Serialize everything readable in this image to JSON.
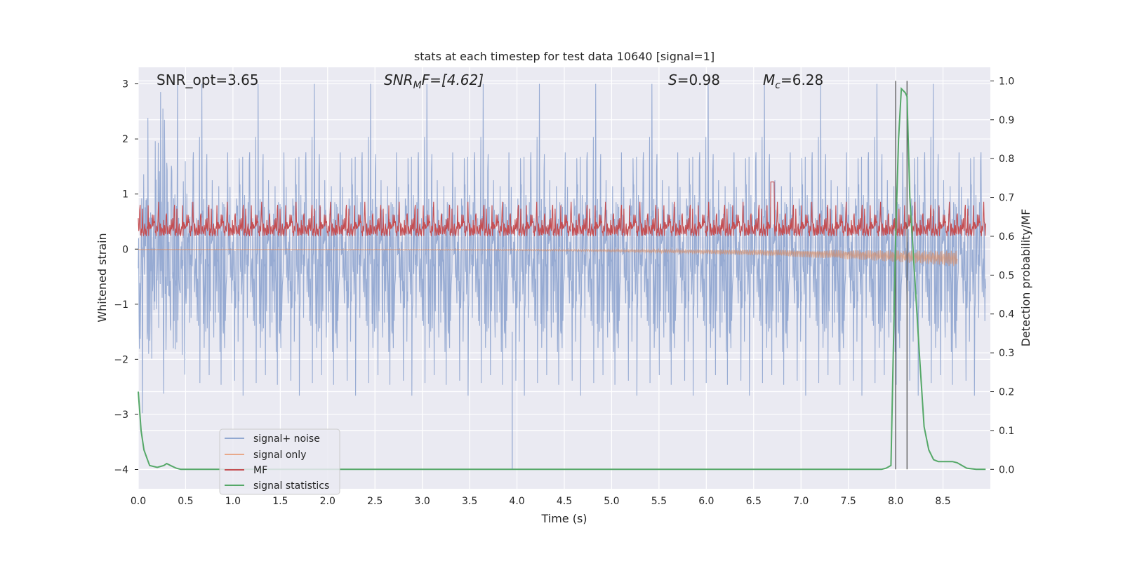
{
  "chart_data": {
    "type": "line",
    "title": "stats at each timestep for test data 10640 [signal=1]",
    "xlabel": "Time (s)",
    "ylabel_left": "Whitened strain",
    "ylabel_right": "Detection probability/MF",
    "xlim": [
      0.0,
      9.0
    ],
    "ylim_left": [
      -4.35,
      3.3
    ],
    "ylim_right": [
      -0.05,
      1.035
    ],
    "x_ticks": [
      "0.0",
      "0.5",
      "1.0",
      "1.5",
      "2.0",
      "2.5",
      "3.0",
      "3.5",
      "4.0",
      "4.5",
      "5.0",
      "5.5",
      "6.0",
      "6.5",
      "7.0",
      "7.5",
      "8.0",
      "8.5"
    ],
    "y_ticks_left": [
      "3",
      "2",
      "1",
      "0",
      "−1",
      "−2",
      "−3",
      "−4"
    ],
    "y_ticks_right": [
      "1.0",
      "0.9",
      "0.8",
      "0.7",
      "0.6",
      "0.5",
      "0.4",
      "0.3",
      "0.2",
      "0.1",
      "0.0"
    ],
    "grid": true,
    "legend_position": "lower-left",
    "annotations": {
      "snr_opt": "SNR_opt=3.65",
      "snr_mf_base": "SNR",
      "snr_mf_sub": "M",
      "snr_mf_rest": "F=[4.62]",
      "s_var": "S",
      "s_val": "=0.98",
      "mc_var": "M",
      "mc_sub": "c",
      "mc_val": "=6.28"
    },
    "vertical_lines": [
      8.0,
      8.12
    ],
    "series": [
      {
        "name": "signal+ noise",
        "color": "#92a8d1",
        "axis": "left",
        "style": "noise",
        "envelope": [
          -2.0,
          1.9
        ],
        "max_abs_spike": 4.0
      },
      {
        "name": "signal only",
        "color": "#dd8452",
        "axis": "left",
        "style": "chirp",
        "start": 0.0,
        "end": 8.65,
        "final_amplitude": 0.3
      },
      {
        "name": "MF",
        "color": "#c44e52",
        "axis": "right",
        "style": "noise",
        "baseline": 0.6,
        "peak": 0.74
      },
      {
        "name": "signal statistics",
        "color": "#55a868",
        "axis": "right",
        "x": [
          0.0,
          0.03,
          0.06,
          0.09,
          0.12,
          0.2,
          0.27,
          0.3,
          0.34,
          0.4,
          0.45,
          0.6,
          1.0,
          2.0,
          3.0,
          4.0,
          5.0,
          6.0,
          7.0,
          7.8,
          7.85,
          7.9,
          7.95,
          8.0,
          8.03,
          8.06,
          8.1,
          8.12,
          8.15,
          8.2,
          8.25,
          8.3,
          8.35,
          8.4,
          8.45,
          8.5,
          8.6,
          8.65,
          8.7,
          8.75,
          8.85,
          8.95
        ],
        "values": [
          0.2,
          0.1,
          0.05,
          0.03,
          0.01,
          0.005,
          0.01,
          0.015,
          0.01,
          0.003,
          0.0,
          0.0,
          0.0,
          0.0,
          0.0,
          0.0,
          0.0,
          0.0,
          0.0,
          0.0,
          0.0,
          0.003,
          0.01,
          0.6,
          0.85,
          0.98,
          0.97,
          0.96,
          0.7,
          0.5,
          0.3,
          0.11,
          0.05,
          0.025,
          0.02,
          0.02,
          0.02,
          0.017,
          0.01,
          0.003,
          0.0,
          0.0
        ]
      }
    ]
  }
}
